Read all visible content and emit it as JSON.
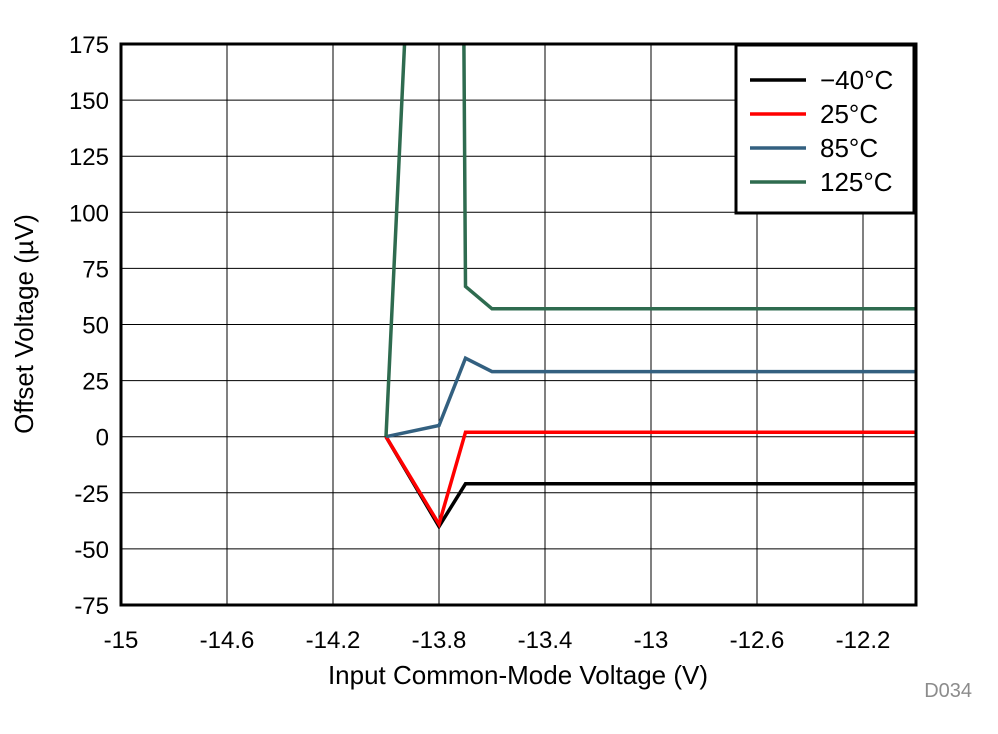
{
  "chart_data": {
    "type": "line",
    "title": "",
    "xlabel": "Input Common-Mode Voltage (V)",
    "ylabel": "Offset Voltage (µV)",
    "xlim": [
      -15,
      -12
    ],
    "ylim": [
      -75,
      175
    ],
    "xticks": [
      -15,
      -14.6,
      -14.2,
      -13.8,
      -13.4,
      -13,
      -12.6,
      -12.2
    ],
    "xtick_labels": [
      "-15",
      "-14.6",
      "-14.2",
      "-13.8",
      "-13.4",
      "-13",
      "-12.6",
      "-12.2"
    ],
    "yticks": [
      -75,
      -50,
      -25,
      0,
      25,
      50,
      75,
      100,
      125,
      150,
      175
    ],
    "ytick_labels": [
      "-75",
      "-50",
      "-25",
      "0",
      "25",
      "50",
      "75",
      "100",
      "125",
      "150",
      "175"
    ],
    "grid": true,
    "legend_position": "top-right",
    "series": [
      {
        "name": "−40°C",
        "color": "#000000",
        "x": [
          -14,
          -13.8,
          -13.7,
          -13.6,
          -12.6,
          -12
        ],
        "y": [
          0,
          -40,
          -21,
          -21,
          -21,
          -21
        ]
      },
      {
        "name": "25°C",
        "color": "#ff0000",
        "x": [
          -14,
          -13.8,
          -13.7,
          -13.6,
          -12.6,
          -12
        ],
        "y": [
          0,
          -39,
          2,
          2,
          2,
          2
        ]
      },
      {
        "name": "85°C",
        "color": "#336080",
        "x": [
          -14,
          -13.8,
          -13.7,
          -13.6,
          -12.6,
          -12
        ],
        "y": [
          0,
          5,
          35,
          29,
          29,
          29
        ]
      },
      {
        "name": "125°C",
        "color": "#2e6b4f",
        "x": [
          -14,
          -13.9,
          -13.71,
          -13.7,
          -13.6,
          -12.6,
          -12
        ],
        "y": [
          0,
          250,
          250,
          67,
          57,
          57,
          57
        ]
      }
    ],
    "annotations": [
      "D034"
    ]
  }
}
